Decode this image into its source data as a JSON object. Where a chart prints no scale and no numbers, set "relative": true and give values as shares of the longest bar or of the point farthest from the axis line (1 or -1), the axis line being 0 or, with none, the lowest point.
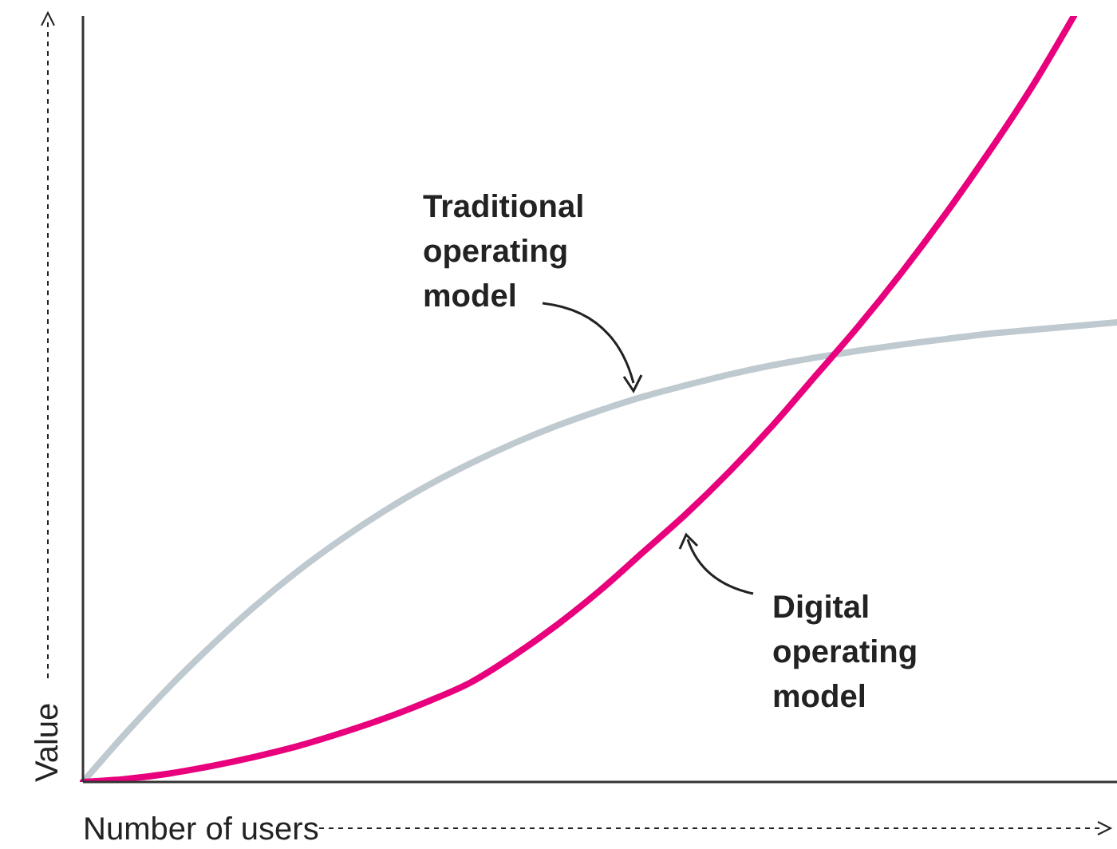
{
  "chart_data": {
    "type": "line",
    "relative": true,
    "xlabel": "Number of users",
    "ylabel": "Value",
    "categories": [
      null,
      null,
      null,
      null,
      null,
      null,
      null,
      null,
      null,
      null,
      null,
      null,
      null,
      null,
      null,
      null,
      null,
      null,
      null,
      null,
      null,
      null,
      null,
      null,
      null
    ],
    "series": [
      {
        "color": "#bfc9d0",
        "values": [
          0,
          0.064,
          0.124,
          0.179,
          0.23,
          0.276,
          0.317,
          0.354,
          0.387,
          0.416,
          0.442,
          0.465,
          0.485,
          0.503,
          0.518,
          0.532,
          0.544,
          0.554,
          0.563,
          0.571,
          0.578,
          0.585,
          0.59,
          0.595,
          0.6
        ]
      },
      {
        "color": "#e8007d",
        "values": [
          0,
          0.004,
          0.011,
          0.021,
          0.033,
          0.047,
          0.064,
          0.083,
          0.105,
          0.13,
          0.165,
          0.205,
          0.25,
          0.3,
          0.35,
          0.405,
          0.465,
          0.53,
          0.595,
          0.665,
          0.74,
          0.82,
          0.905,
          1,
          null
        ]
      }
    ],
    "annotations": [
      "Traditional\noperating\nmodel",
      "Digital\noperating\nmodel"
    ],
    "grid": false,
    "legend": false,
    "marker": "none",
    "line_style": "solid"
  }
}
